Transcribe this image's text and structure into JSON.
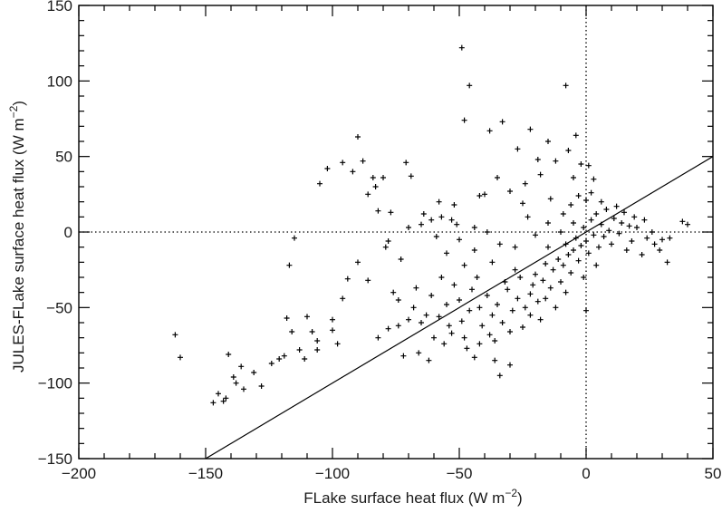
{
  "chart_data": {
    "type": "scatter",
    "title": "",
    "xlabel": "FLake surface heat flux (W m",
    "xlabel_sup": "−2",
    "xlabel_end": ")",
    "ylabel": "JULES-FLake surface heat flux (W m",
    "ylabel_sup": "−2",
    "ylabel_end": ")",
    "xlim": [
      -200,
      50
    ],
    "ylim": [
      -150,
      150
    ],
    "x_ticks": [
      -200,
      -150,
      -100,
      -50,
      0,
      50
    ],
    "x_tick_labels": [
      "−200",
      "−150",
      "−100",
      "−50",
      "0",
      "50"
    ],
    "y_ticks": [
      -150,
      -100,
      -50,
      0,
      50,
      100,
      150
    ],
    "y_tick_labels": [
      "−150",
      "−100",
      "−50",
      "0",
      "50",
      "100",
      "150"
    ],
    "grid": false,
    "legend": "none",
    "marker": "+",
    "reference_lines": [
      {
        "kind": "one-to-one",
        "style": "solid",
        "from": [
          -150,
          -150
        ],
        "to": [
          50,
          50
        ]
      },
      {
        "kind": "horizontal",
        "style": "dotted",
        "y": 0
      },
      {
        "kind": "vertical",
        "style": "dotted",
        "x": 0
      }
    ],
    "series": [
      {
        "marker": "+",
        "color": "#000000",
        "points": [
          [
            -162,
            -68
          ],
          [
            -160,
            -83
          ],
          [
            -147,
            -113
          ],
          [
            -145,
            -107
          ],
          [
            -143,
            -112
          ],
          [
            -142,
            -110
          ],
          [
            -141,
            -81
          ],
          [
            -139,
            -96
          ],
          [
            -138,
            -100
          ],
          [
            -136,
            -89
          ],
          [
            -135,
            -104
          ],
          [
            -131,
            -93
          ],
          [
            -128,
            -102
          ],
          [
            -124,
            -87
          ],
          [
            -121,
            -84
          ],
          [
            -119,
            -82
          ],
          [
            -118,
            -57
          ],
          [
            -117,
            -22
          ],
          [
            -116,
            -66
          ],
          [
            -115,
            -4
          ],
          [
            -113,
            -78
          ],
          [
            -111,
            -84
          ],
          [
            -108,
            -66
          ],
          [
            -106,
            -78
          ],
          [
            -105,
            32
          ],
          [
            -102,
            42
          ],
          [
            -100,
            -58
          ],
          [
            -98,
            -74
          ],
          [
            -96,
            46
          ],
          [
            -94,
            -31
          ],
          [
            -92,
            40
          ],
          [
            -90,
            63
          ],
          [
            -88,
            47
          ],
          [
            -86,
            25
          ],
          [
            -84,
            36
          ],
          [
            -83,
            30
          ],
          [
            -82,
            14
          ],
          [
            -80,
            36
          ],
          [
            -78,
            -6
          ],
          [
            -77,
            13
          ],
          [
            -76,
            -40
          ],
          [
            -74,
            -62
          ],
          [
            -73,
            -18
          ],
          [
            -71,
            46
          ],
          [
            -69,
            37
          ],
          [
            -67,
            -37
          ],
          [
            -65,
            5
          ],
          [
            -63,
            -55
          ],
          [
            -61,
            8
          ],
          [
            -59,
            -3
          ],
          [
            -57,
            10
          ],
          [
            -55,
            -14
          ],
          [
            -53,
            8
          ],
          [
            -51,
            5
          ],
          [
            -49,
            122
          ],
          [
            -48,
            74
          ],
          [
            -46,
            97
          ],
          [
            -44,
            3
          ],
          [
            -42,
            24
          ],
          [
            -38,
            67
          ],
          [
            -35,
            36
          ],
          [
            -33,
            73
          ],
          [
            -30,
            27
          ],
          [
            -27,
            55
          ],
          [
            -25,
            19
          ],
          [
            -22,
            68
          ],
          [
            -19,
            48
          ],
          [
            -15,
            60
          ],
          [
            -14,
            22
          ],
          [
            -8,
            97
          ],
          [
            -7,
            54
          ],
          [
            -5,
            36
          ],
          [
            -4,
            64
          ],
          [
            -2,
            45
          ],
          [
            1,
            44
          ],
          [
            3,
            35
          ],
          [
            -62,
            -85
          ],
          [
            -66,
            -80
          ],
          [
            -72,
            -82
          ],
          [
            -56,
            -74
          ],
          [
            -47,
            -77
          ],
          [
            -44,
            -83
          ],
          [
            -38,
            -68
          ],
          [
            -60,
            -70
          ],
          [
            -53,
            -67
          ],
          [
            -50,
            -45
          ],
          [
            -58,
            -56
          ],
          [
            -49,
            -59
          ],
          [
            -45,
            -38
          ],
          [
            -41,
            -62
          ],
          [
            -42,
            -50
          ],
          [
            -39,
            -42
          ],
          [
            -37,
            -55
          ],
          [
            -35,
            -48
          ],
          [
            -33,
            -60
          ],
          [
            -31,
            -38
          ],
          [
            -29,
            -52
          ],
          [
            -27,
            -44
          ],
          [
            -26,
            -30
          ],
          [
            -24,
            -50
          ],
          [
            -22,
            -41
          ],
          [
            -20,
            -28
          ],
          [
            -19,
            -46
          ],
          [
            -17,
            -32
          ],
          [
            -16,
            -21
          ],
          [
            -14,
            -37
          ],
          [
            -13,
            -25
          ],
          [
            -11,
            -18
          ],
          [
            -10,
            -33
          ],
          [
            -9,
            -22
          ],
          [
            -8,
            -8
          ],
          [
            -7,
            -15
          ],
          [
            -6,
            -27
          ],
          [
            -5,
            -12
          ],
          [
            -4,
            -4
          ],
          [
            -3,
            -19
          ],
          [
            -2,
            -9
          ],
          [
            -1,
            3
          ],
          [
            0,
            -6
          ],
          [
            1,
            -14
          ],
          [
            2,
            8
          ],
          [
            3,
            -2
          ],
          [
            4,
            12
          ],
          [
            5,
            -10
          ],
          [
            6,
            5
          ],
          [
            7,
            -3
          ],
          [
            8,
            15
          ],
          [
            9,
            1
          ],
          [
            10,
            -8
          ],
          [
            11,
            9
          ],
          [
            12,
            17
          ],
          [
            13,
            -1
          ],
          [
            14,
            6
          ],
          [
            15,
            13
          ],
          [
            16,
            -12
          ],
          [
            17,
            4
          ],
          [
            18,
            -6
          ],
          [
            19,
            10
          ],
          [
            20,
            3
          ],
          [
            22,
            -15
          ],
          [
            23,
            8
          ],
          [
            24,
            -4
          ],
          [
            26,
            0
          ],
          [
            27,
            -8
          ],
          [
            29,
            -12
          ],
          [
            30,
            -5
          ],
          [
            32,
            -20
          ],
          [
            33,
            -4
          ],
          [
            38,
            7
          ],
          [
            40,
            5
          ],
          [
            0,
            -52
          ],
          [
            -30,
            -88
          ],
          [
            -34,
            -95
          ],
          [
            -36,
            -85
          ],
          [
            -12,
            47
          ],
          [
            -18,
            38
          ],
          [
            -24,
            32
          ],
          [
            -40,
            25
          ],
          [
            -52,
            18
          ],
          [
            -58,
            20
          ],
          [
            -64,
            12
          ],
          [
            -70,
            3
          ],
          [
            -79,
            -10
          ],
          [
            -86,
            -32
          ],
          [
            -90,
            -20
          ],
          [
            -96,
            -44
          ],
          [
            -100,
            -65
          ],
          [
            -106,
            -72
          ],
          [
            -110,
            -56
          ],
          [
            -1,
            -30
          ],
          [
            4,
            -22
          ],
          [
            -8,
            -40
          ],
          [
            -12,
            -50
          ],
          [
            -18,
            -58
          ],
          [
            -21,
            -35
          ],
          [
            -25,
            -63
          ],
          [
            -28,
            -25
          ],
          [
            -32,
            -33
          ],
          [
            -37,
            -20
          ],
          [
            -43,
            -30
          ],
          [
            -46,
            -52
          ],
          [
            -48,
            -22
          ],
          [
            -52,
            -35
          ],
          [
            -55,
            -48
          ],
          [
            -57,
            -30
          ],
          [
            -61,
            -42
          ],
          [
            -65,
            -60
          ],
          [
            -68,
            -50
          ],
          [
            -70,
            -58
          ],
          [
            -74,
            -45
          ],
          [
            -78,
            -64
          ],
          [
            -82,
            -70
          ],
          [
            -6,
            18
          ],
          [
            -3,
            24
          ],
          [
            0,
            21
          ],
          [
            2,
            26
          ],
          [
            6,
            20
          ],
          [
            -9,
            12
          ],
          [
            -15,
            6
          ],
          [
            -20,
            -2
          ],
          [
            -23,
            10
          ],
          [
            -28,
            -10
          ],
          [
            -34,
            -8
          ],
          [
            -39,
            0
          ],
          [
            -44,
            -12
          ],
          [
            -50,
            -5
          ],
          [
            -15,
            -10
          ],
          [
            -10,
            0
          ],
          [
            -5,
            6
          ],
          [
            -16,
            -44
          ],
          [
            -22,
            -55
          ],
          [
            -30,
            -66
          ],
          [
            -36,
            -72
          ],
          [
            -42,
            -74
          ],
          [
            -48,
            -70
          ],
          [
            -54,
            -62
          ]
        ]
      }
    ]
  }
}
